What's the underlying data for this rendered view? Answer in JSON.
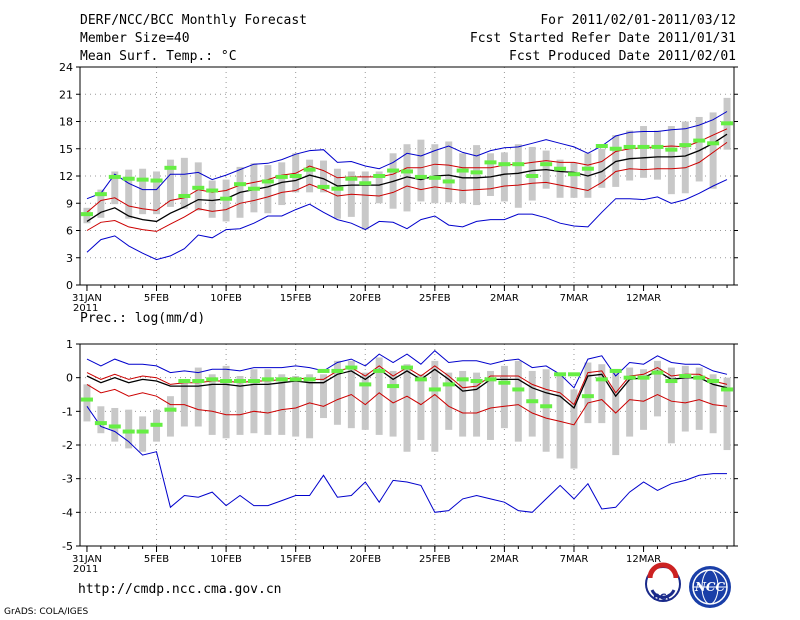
{
  "header": {
    "title": "DERF/NCC/BCC Monthly Forecast",
    "member_size": "Member Size=40",
    "variable": "Mean Surf. Temp.: °C",
    "period": "For 2011/02/01-2011/03/12",
    "fcst_started": "Fcst Started Refer Date 2011/01/31",
    "fcst_produced": "Fcst Produced Date 2011/02/01"
  },
  "footer": {
    "url": "http://cmdp.ncc.cma.gov.cn",
    "credit": "GrADS: COLA/IGES",
    "logo1_text": "BCC",
    "logo2_text": "NCC"
  },
  "colors": {
    "envelope": "#0000cc",
    "spread": "#cc0000",
    "mean": "#000000",
    "box": "#c8c8c8",
    "marker": "#66ee44",
    "grid": "#999999"
  },
  "chart_data": [
    {
      "type": "line",
      "title": "Mean Surf. Temp.: °C",
      "x_tick_labels": [
        "31JAN\n2011",
        "5FEB",
        "10FEB",
        "15FEB",
        "20FEB",
        "25FEB",
        "2MAR",
        "7MAR",
        "12MAR"
      ],
      "ylim": [
        0,
        24
      ],
      "y_ticks": [
        0,
        3,
        6,
        9,
        12,
        15,
        18,
        21,
        24
      ],
      "grid": true,
      "series": [
        {
          "name": "max",
          "values": [
            3.6,
            5.0,
            5.4,
            4.3,
            3.5,
            2.8,
            3.2,
            4.0,
            5.5,
            5.2,
            6.1,
            6.2,
            6.8,
            7.6,
            7.6,
            8.3,
            8.9,
            8.0,
            7.2,
            6.8,
            6.1,
            7.0,
            6.9,
            6.2,
            7.2,
            7.6,
            6.6,
            6.4,
            7.0,
            7.2,
            7.2,
            7.8,
            7.8,
            7.4,
            6.8,
            6.5,
            6.4,
            8.0,
            9.5,
            9.5,
            9.4,
            9.7,
            9.0,
            9.4,
            10.1,
            10.9,
            11.6
          ]
        },
        {
          "name": "max",
          "values": [
            9.5,
            10.1,
            12.2,
            11.2,
            10.5,
            10.5,
            12.2,
            12.2,
            12.4,
            11.6,
            12.1,
            12.7,
            13.3,
            13.4,
            13.8,
            14.4,
            14.8,
            14.9,
            13.5,
            13.6,
            13.1,
            12.8,
            13.5,
            14.5,
            14.2,
            14.8,
            15.3,
            14.6,
            14.2,
            14.8,
            15.1,
            15.2,
            15.6,
            16.0,
            15.6,
            15.2,
            14.5,
            15.3,
            16.4,
            16.8,
            16.9,
            16.9,
            17.1,
            17.2,
            17.6,
            18.2,
            19.1
          ]
        },
        {
          "name": "spread_upper",
          "values": [
            8.0,
            9.3,
            9.6,
            8.7,
            8.4,
            8.2,
            9.3,
            9.6,
            10.5,
            10.2,
            10.4,
            11.0,
            11.3,
            11.6,
            12.1,
            12.3,
            13.1,
            12.6,
            11.8,
            11.9,
            11.9,
            11.9,
            12.2,
            12.9,
            12.9,
            13.3,
            13.2,
            12.9,
            12.9,
            12.9,
            13.2,
            13.3,
            13.5,
            13.7,
            13.5,
            13.5,
            13.2,
            13.6,
            14.7,
            15.0,
            15.1,
            15.2,
            15.3,
            15.2,
            15.8,
            16.5,
            17.2
          ]
        },
        {
          "name": "mean",
          "values": [
            7.0,
            8.0,
            8.5,
            7.6,
            7.2,
            7.0,
            7.9,
            8.6,
            9.4,
            9.3,
            9.5,
            10.2,
            10.5,
            10.8,
            11.3,
            11.5,
            12.1,
            11.7,
            10.9,
            11.0,
            11.0,
            11.0,
            11.4,
            11.9,
            11.6,
            12.0,
            12.1,
            11.8,
            11.8,
            11.9,
            12.2,
            12.3,
            12.6,
            12.7,
            12.5,
            12.4,
            12.0,
            12.5,
            13.6,
            13.9,
            14.0,
            14.1,
            14.1,
            14.2,
            14.8,
            15.6,
            16.6
          ]
        },
        {
          "name": "spread_lower",
          "values": [
            6.0,
            6.9,
            7.1,
            6.4,
            6.1,
            5.9,
            6.7,
            7.5,
            8.4,
            8.1,
            8.3,
            9.0,
            9.3,
            9.7,
            10.2,
            10.4,
            11.1,
            10.5,
            9.8,
            10.0,
            9.9,
            9.8,
            10.2,
            10.9,
            10.5,
            10.8,
            10.6,
            10.4,
            10.5,
            10.6,
            10.9,
            11.0,
            11.2,
            11.3,
            11.0,
            10.7,
            10.4,
            11.3,
            12.5,
            12.8,
            12.7,
            12.8,
            12.8,
            12.9,
            13.5,
            14.6,
            15.7
          ]
        }
      ],
      "boxes": {
        "tops": [
          8.5,
          10.5,
          12.5,
          12.7,
          12.8,
          12.5,
          13.8,
          14.0,
          13.5,
          11.5,
          11.6,
          13.0,
          13.4,
          13.2,
          13.5,
          14.5,
          13.8,
          13.7,
          12.8,
          12.5,
          12.5,
          12.5,
          14.5,
          15.5,
          16.0,
          15.5,
          15.8,
          14.5,
          15.4,
          14.5,
          14.6,
          15.5,
          15.2,
          14.8,
          13.8,
          13.5,
          14.5,
          15.0,
          16.5,
          17.0,
          17.5,
          17.0,
          17.5,
          18.0,
          18.5,
          19.0,
          20.6
        ],
        "bottoms": [
          6.8,
          7.4,
          8.9,
          7.3,
          7.8,
          7.8,
          8.6,
          8.4,
          8.2,
          7.4,
          7.0,
          7.4,
          8.0,
          7.9,
          8.8,
          10.2,
          10.2,
          10.2,
          7.3,
          7.5,
          6.1,
          9.0,
          8.4,
          8.1,
          9.2,
          9.0,
          9.1,
          9.0,
          8.8,
          9.8,
          9.2,
          8.5,
          9.3,
          10.6,
          9.6,
          9.6,
          9.6,
          10.7,
          10.8,
          11.5,
          11.8,
          11.6,
          10.0,
          10.1,
          11.4,
          10.6,
          14.9
        ]
      },
      "markers": [
        7.8,
        10.0,
        11.9,
        11.7,
        11.6,
        11.5,
        12.9,
        9.8,
        10.7,
        10.4,
        9.5,
        11.1,
        10.6,
        11.4,
        11.9,
        12.0,
        12.7,
        10.8,
        10.6,
        11.7,
        11.2,
        12.0,
        12.6,
        12.5,
        11.9,
        11.8,
        11.4,
        12.6,
        12.4,
        13.5,
        13.3,
        13.3,
        12.0,
        13.3,
        12.8,
        12.2,
        12.8,
        15.3,
        15.0,
        15.2,
        15.2,
        15.2,
        14.9,
        15.4,
        15.9,
        15.6,
        17.8
      ]
    },
    {
      "type": "line",
      "title": "Prec.: log(mm/d)",
      "x_tick_labels": [
        "31JAN\n2011",
        "5FEB",
        "10FEB",
        "15FEB",
        "20FEB",
        "25FEB",
        "2MAR",
        "7MAR",
        "12MAR"
      ],
      "ylim": [
        -5,
        1
      ],
      "y_ticks": [
        -5,
        -4,
        -3,
        -2,
        -1,
        0,
        1
      ],
      "grid": true,
      "series": [
        {
          "name": "max",
          "values": [
            0.55,
            0.35,
            0.55,
            0.4,
            0.4,
            0.35,
            0.15,
            0.2,
            0.15,
            0.25,
            0.25,
            0.2,
            0.3,
            0.3,
            0.3,
            0.35,
            0.3,
            0.2,
            0.45,
            0.55,
            0.35,
            0.7,
            0.45,
            0.7,
            0.4,
            0.8,
            0.45,
            0.5,
            0.5,
            0.4,
            0.5,
            0.55,
            0.3,
            0.35,
            0.1,
            -0.3,
            0.55,
            0.65,
            0.05,
            0.45,
            0.4,
            0.65,
            0.45,
            0.4,
            0.4,
            0.2,
            0.1
          ]
        },
        {
          "name": "min",
          "values": [
            -0.85,
            -1.45,
            -1.6,
            -1.9,
            -2.3,
            -2.2,
            -3.85,
            -3.5,
            -3.55,
            -3.4,
            -3.8,
            -3.5,
            -3.8,
            -3.8,
            -3.65,
            -3.5,
            -3.5,
            -2.9,
            -3.55,
            -3.5,
            -3.1,
            -3.7,
            -3.05,
            -3.1,
            -3.2,
            -4.0,
            -3.95,
            -3.6,
            -3.5,
            -3.6,
            -3.7,
            -3.95,
            -4.0,
            -3.6,
            -3.2,
            -3.6,
            -3.15,
            -3.9,
            -3.85,
            -3.4,
            -3.1,
            -3.35,
            -3.15,
            -3.05,
            -2.9,
            -2.85,
            -2.85
          ]
        },
        {
          "name": "spread_upper",
          "values": [
            0.15,
            -0.05,
            0.1,
            -0.05,
            0.05,
            0.0,
            -0.2,
            -0.15,
            -0.15,
            -0.1,
            -0.1,
            -0.15,
            -0.1,
            -0.1,
            -0.05,
            0.0,
            -0.05,
            -0.05,
            0.2,
            0.3,
            0.05,
            0.35,
            0.05,
            0.3,
            0.05,
            0.35,
            0.05,
            -0.3,
            -0.25,
            0.05,
            0.05,
            0.05,
            -0.2,
            -0.35,
            -0.45,
            -0.8,
            0.15,
            0.2,
            -0.45,
            0.05,
            0.1,
            0.3,
            0.05,
            0.1,
            0.1,
            -0.1,
            -0.2
          ]
        },
        {
          "name": "mean",
          "values": [
            0.05,
            -0.15,
            0.0,
            -0.15,
            -0.05,
            -0.1,
            -0.25,
            -0.25,
            -0.25,
            -0.2,
            -0.2,
            -0.25,
            -0.2,
            -0.2,
            -0.15,
            -0.1,
            -0.15,
            -0.15,
            0.1,
            0.2,
            -0.05,
            0.25,
            -0.05,
            0.2,
            -0.05,
            0.25,
            -0.05,
            -0.4,
            -0.35,
            -0.05,
            -0.05,
            -0.05,
            -0.3,
            -0.45,
            -0.55,
            -0.9,
            0.05,
            0.1,
            -0.55,
            -0.05,
            0.0,
            0.2,
            -0.05,
            0.0,
            0.0,
            -0.2,
            -0.3
          ]
        },
        {
          "name": "spread_lower",
          "values": [
            -0.2,
            -0.45,
            -0.35,
            -0.55,
            -0.45,
            -0.55,
            -0.8,
            -0.8,
            -0.95,
            -1.0,
            -1.1,
            -1.1,
            -1.0,
            -1.05,
            -0.95,
            -0.9,
            -0.75,
            -0.85,
            -0.65,
            -0.5,
            -0.8,
            -0.45,
            -0.75,
            -0.55,
            -0.8,
            -0.5,
            -0.85,
            -1.05,
            -1.05,
            -0.9,
            -0.85,
            -0.8,
            -1.05,
            -1.2,
            -1.3,
            -1.4,
            -0.75,
            -0.65,
            -1.05,
            -0.65,
            -0.7,
            -0.5,
            -0.7,
            -0.75,
            -0.65,
            -0.8,
            -0.85
          ]
        }
      ],
      "boxes": {
        "tops": [
          -0.2,
          -0.85,
          -0.9,
          -0.95,
          -1.15,
          -0.95,
          -0.55,
          -0.05,
          0.3,
          0.1,
          0.35,
          0.05,
          0.25,
          0.25,
          0.1,
          0.05,
          0.1,
          0.1,
          0.5,
          0.5,
          0.15,
          0.6,
          0.2,
          0.4,
          0.1,
          0.5,
          0.15,
          0.2,
          0.15,
          0.2,
          0.35,
          0.5,
          0.2,
          0.25,
          0.1,
          -0.35,
          0.45,
          0.4,
          0.2,
          0.3,
          0.25,
          0.5,
          0.3,
          0.35,
          0.3,
          0.1,
          0.0
        ],
        "bottoms": [
          -1.3,
          -1.65,
          -1.9,
          -2.1,
          -2.2,
          -1.9,
          -1.75,
          -1.45,
          -1.45,
          -1.7,
          -1.8,
          -1.7,
          -1.65,
          -1.7,
          -1.7,
          -1.75,
          -1.8,
          -1.2,
          -1.4,
          -1.5,
          -1.55,
          -1.7,
          -1.75,
          -2.2,
          -1.85,
          -2.2,
          -1.55,
          -1.75,
          -1.75,
          -1.85,
          -1.5,
          -1.9,
          -1.75,
          -2.2,
          -2.4,
          -2.7,
          -1.35,
          -1.35,
          -2.3,
          -1.75,
          -1.55,
          -1.15,
          -1.95,
          -1.6,
          -1.55,
          -1.65,
          -2.15
        ]
      },
      "markers": [
        -0.65,
        -1.35,
        -1.45,
        -1.6,
        -1.6,
        -1.4,
        -0.95,
        -0.1,
        -0.1,
        -0.05,
        -0.1,
        -0.1,
        -0.1,
        -0.05,
        -0.05,
        -0.05,
        -0.05,
        0.2,
        0.2,
        0.3,
        -0.2,
        0.2,
        -0.25,
        0.3,
        -0.05,
        -0.35,
        -0.2,
        -0.05,
        -0.1,
        -0.05,
        -0.15,
        -0.35,
        -0.7,
        -0.85,
        0.1,
        0.1,
        -0.55,
        -0.05,
        0.2,
        0.0,
        0.0,
        0.15,
        -0.1,
        0.05,
        0.0,
        -0.1,
        -0.35
      ]
    }
  ]
}
